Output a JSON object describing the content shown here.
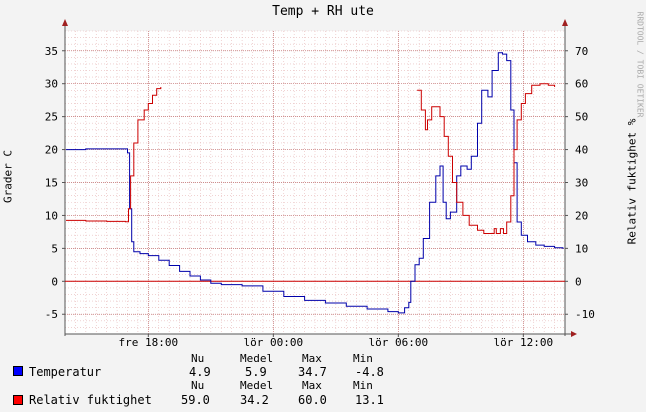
{
  "title": "Temp + RH ute",
  "watermark": "RRDTOOL / TOBI OETIKER",
  "chart_data": {
    "type": "line",
    "title": "Temp + RH ute",
    "ylabel_left": "Grader C",
    "ylabel_right": "Relativ fuktighet %",
    "ylim_left": [
      -8,
      38
    ],
    "ylim_right": [
      -16,
      76
    ],
    "yticks_left": [
      -5,
      0,
      5,
      10,
      15,
      20,
      25,
      30,
      35
    ],
    "yticks_right": [
      -10,
      0,
      10,
      20,
      30,
      40,
      50,
      60,
      70
    ],
    "x_range_hours": [
      14,
      38
    ],
    "x_ticks": [
      {
        "hour": 18,
        "label": "fre 18:00"
      },
      {
        "hour": 24,
        "label": "lör 00:00"
      },
      {
        "hour": 30,
        "label": "lör 06:00"
      },
      {
        "hour": 36,
        "label": "lör 12:00"
      }
    ],
    "grid": true,
    "series": [
      {
        "name": "Temperatur",
        "axis": "left",
        "color": "#0000aa",
        "points": [
          [
            14.05,
            20.0
          ],
          [
            15.0,
            20.1
          ],
          [
            16.0,
            20.1
          ],
          [
            16.9,
            20.1
          ],
          [
            17.0,
            19.5
          ],
          [
            17.1,
            11.0
          ],
          [
            17.2,
            6.0
          ],
          [
            17.3,
            4.5
          ],
          [
            17.6,
            4.2
          ],
          [
            18.0,
            3.9
          ],
          [
            18.5,
            3.2
          ],
          [
            19.0,
            2.4
          ],
          [
            19.5,
            1.5
          ],
          [
            20.0,
            0.8
          ],
          [
            20.5,
            0.2
          ],
          [
            21.0,
            -0.3
          ],
          [
            21.5,
            -0.5
          ],
          [
            22.5,
            -0.7
          ],
          [
            23.5,
            -1.5
          ],
          [
            24.5,
            -2.3
          ],
          [
            25.5,
            -2.9
          ],
          [
            26.5,
            -3.3
          ],
          [
            27.5,
            -3.8
          ],
          [
            28.5,
            -4.2
          ],
          [
            29.5,
            -4.6
          ],
          [
            30.0,
            -4.8
          ],
          [
            30.3,
            -4.0
          ],
          [
            30.5,
            -3.2
          ],
          [
            30.6,
            0.0
          ],
          [
            30.8,
            2.5
          ],
          [
            31.0,
            3.5
          ],
          [
            31.2,
            6.5
          ],
          [
            31.5,
            12.0
          ],
          [
            31.8,
            16.0
          ],
          [
            32.0,
            17.5
          ],
          [
            32.15,
            12.0
          ],
          [
            32.3,
            9.5
          ],
          [
            32.5,
            10.5
          ],
          [
            32.8,
            16.0
          ],
          [
            33.0,
            17.5
          ],
          [
            33.3,
            17.0
          ],
          [
            33.5,
            19.0
          ],
          [
            33.8,
            24.0
          ],
          [
            34.0,
            29.0
          ],
          [
            34.3,
            28.0
          ],
          [
            34.5,
            32.0
          ],
          [
            34.8,
            34.7
          ],
          [
            35.0,
            34.5
          ],
          [
            35.2,
            33.5
          ],
          [
            35.4,
            26.0
          ],
          [
            35.55,
            18.0
          ],
          [
            35.7,
            9.0
          ],
          [
            35.9,
            7.0
          ],
          [
            36.2,
            6.0
          ],
          [
            36.6,
            5.5
          ],
          [
            37.0,
            5.3
          ],
          [
            37.5,
            5.1
          ],
          [
            37.9,
            4.9
          ]
        ]
      },
      {
        "name": "Relativ fuktighet",
        "axis": "right",
        "color": "#cc0000",
        "points": [
          [
            14.05,
            18.5
          ],
          [
            15.0,
            18.3
          ],
          [
            16.0,
            18.2
          ],
          [
            16.9,
            18.1
          ],
          [
            17.05,
            22.0
          ],
          [
            17.15,
            32.0
          ],
          [
            17.3,
            42.0
          ],
          [
            17.5,
            49.0
          ],
          [
            17.8,
            52.0
          ],
          [
            18.0,
            54.0
          ],
          [
            18.2,
            56.5
          ],
          [
            18.4,
            58.5
          ],
          [
            18.6,
            59.0
          ],
          [
            30.9,
            58.0
          ],
          [
            31.1,
            52.0
          ],
          [
            31.3,
            46.0
          ],
          [
            31.4,
            49.0
          ],
          [
            31.6,
            53.0
          ],
          [
            31.8,
            53.0
          ],
          [
            32.0,
            50.0
          ],
          [
            32.2,
            44.0
          ],
          [
            32.4,
            38.0
          ],
          [
            32.6,
            30.0
          ],
          [
            32.8,
            24.0
          ],
          [
            33.1,
            20.0
          ],
          [
            33.4,
            17.0
          ],
          [
            33.8,
            15.5
          ],
          [
            34.1,
            14.5
          ],
          [
            34.4,
            14.5
          ],
          [
            34.6,
            16.0
          ],
          [
            34.7,
            14.5
          ],
          [
            34.9,
            16.0
          ],
          [
            35.05,
            14.5
          ],
          [
            35.2,
            18.0
          ],
          [
            35.4,
            26.0
          ],
          [
            35.55,
            40.0
          ],
          [
            35.7,
            49.0
          ],
          [
            35.9,
            54.0
          ],
          [
            36.1,
            57.0
          ],
          [
            36.4,
            59.5
          ],
          [
            36.8,
            60.0
          ],
          [
            37.2,
            59.5
          ],
          [
            37.5,
            59.0
          ]
        ]
      }
    ],
    "baseline_color": "#cc0000"
  },
  "legend": {
    "temp": {
      "label": "Temperatur",
      "color": "#0000ff",
      "nu": "4.9",
      "medel": "5.9",
      "max": "34.7",
      "min": "-4.8"
    },
    "rh": {
      "label": "Relativ fuktighet",
      "color": "#ff0000",
      "nu": "59.0",
      "medel": "34.2",
      "max": "60.0",
      "min": "13.1"
    },
    "headers": {
      "nu": "Nu",
      "medel": "Medel",
      "max": "Max",
      "min": "Min"
    }
  }
}
